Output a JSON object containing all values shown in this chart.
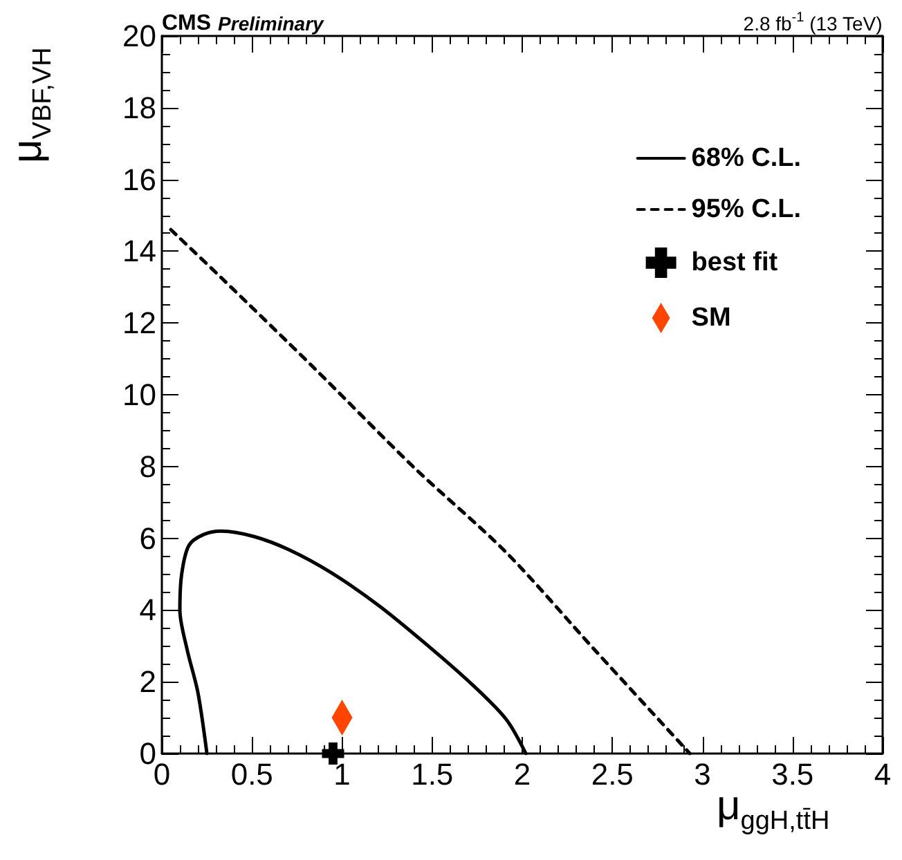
{
  "chart_data": {
    "type": "line",
    "title": "CMS",
    "subtitle": "Preliminary",
    "annotations": [
      "2.8 fb$^{-1}$ (13 TeV)"
    ],
    "xlabel": "μ$_{ggH,tt̄H}$",
    "ylabel": "μ$_{VBF,VH}$",
    "xlim": [
      0,
      4
    ],
    "xticks": [
      0,
      0.5,
      1,
      1.5,
      2,
      2.5,
      3,
      3.5,
      4
    ],
    "ylim": [
      0,
      20
    ],
    "yticks": [
      0,
      2,
      4,
      6,
      8,
      10,
      12,
      14,
      16,
      18,
      20
    ],
    "grid": false,
    "legend": "top right",
    "series": [
      {
        "name": "68% C.L.",
        "color": "#000000",
        "line_style": "solid",
        "marker": "none",
        "x": [
          0.25,
          0.2,
          0.14,
          0.1,
          0.11,
          0.15,
          0.23,
          0.33,
          0.51,
          0.71,
          0.94,
          1.2,
          1.45,
          1.71,
          1.91,
          2.02
        ],
        "values": [
          0,
          1.7,
          2.9,
          4.0,
          5.0,
          5.8,
          6.1,
          6.2,
          6.05,
          5.67,
          5.04,
          4.14,
          3.12,
          1.98,
          0.96,
          0
        ]
      },
      {
        "name": "95% C.L.",
        "color": "#000000",
        "line_style": "dashed",
        "marker": "none",
        "x": [
          0.05,
          0.33,
          0.84,
          1.4,
          1.91,
          2.4,
          2.93
        ],
        "values": [
          14.6,
          13.26,
          10.77,
          7.97,
          5.61,
          2.9,
          0
        ]
      },
      {
        "name": "best fit",
        "type": "scatter",
        "color": "#000000",
        "marker": "cross",
        "x": [
          0.95
        ],
        "values": [
          0
        ]
      },
      {
        "name": "SM",
        "type": "scatter",
        "color": "#ff4500",
        "marker": "diamond",
        "x": [
          1
        ],
        "values": [
          1
        ]
      }
    ]
  }
}
